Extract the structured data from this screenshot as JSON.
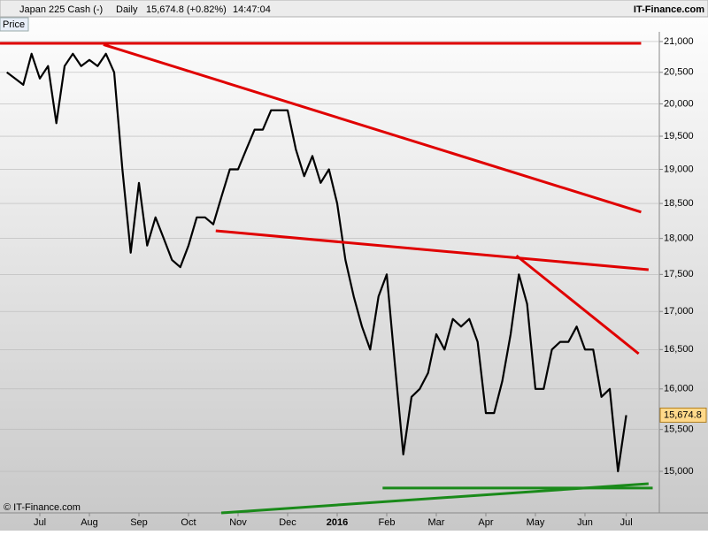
{
  "header": {
    "instrument": "Japan 225 Cash (-)",
    "interval": "Daily",
    "quote": "15,674.8 (+0.82%)",
    "time": "14:47:04",
    "brand": "IT-Finance.com"
  },
  "footer": {
    "copyright": "© IT-Finance.com"
  },
  "chart_data": {
    "type": "line",
    "log_scale": true,
    "grid": true,
    "categories": [
      null,
      null,
      null,
      null,
      "Jul",
      null,
      null,
      null,
      null,
      null,
      "Aug",
      null,
      null,
      null,
      null,
      null,
      "Sep",
      null,
      null,
      null,
      null,
      null,
      "Oct",
      null,
      null,
      null,
      null,
      null,
      "Nov",
      null,
      null,
      null,
      null,
      null,
      "Dec",
      null,
      null,
      null,
      null,
      null,
      "2016",
      null,
      null,
      null,
      null,
      null,
      "Feb",
      null,
      null,
      null,
      null,
      null,
      "Mar",
      null,
      null,
      null,
      null,
      null,
      "Apr",
      null,
      null,
      null,
      null,
      null,
      "May",
      null,
      null,
      null,
      null,
      null,
      "Jun",
      null,
      null,
      null,
      null,
      "Jul"
    ],
    "series": [
      {
        "name": "Price",
        "color": "#000000",
        "values": [
          20500,
          20400,
          20300,
          20800,
          20400,
          20600,
          19700,
          20600,
          20800,
          20600,
          20700,
          20600,
          20800,
          20500,
          19000,
          17800,
          18800,
          17900,
          18300,
          18000,
          17700,
          17600,
          17900,
          18300,
          18300,
          18200,
          18600,
          19000,
          19000,
          19300,
          19600,
          19600,
          19900,
          19900,
          19900,
          19300,
          18900,
          19200,
          18800,
          19000,
          18500,
          17700,
          17200,
          16800,
          16500,
          17200,
          17500,
          16300,
          15200,
          15900,
          16000,
          16200,
          16700,
          16500,
          16900,
          16800,
          16900,
          16600,
          15700,
          15700,
          16100,
          16700,
          17500,
          17100,
          16000,
          16000,
          16500,
          16600,
          16600,
          16800,
          16500,
          16500,
          15900,
          16000,
          15000,
          15674.8
        ]
      }
    ],
    "last_price": {
      "value": 15674.8,
      "label": "15,674.8"
    },
    "ylim": [
      14520,
      21160
    ],
    "yticks": [
      {
        "value": 15000,
        "label": "15,000"
      },
      {
        "value": 15500,
        "label": "15,500"
      },
      {
        "value": 16000,
        "label": "16,000"
      },
      {
        "value": 16500,
        "label": "16,500"
      },
      {
        "value": 17000,
        "label": "17,000"
      },
      {
        "value": 17500,
        "label": "17,500"
      },
      {
        "value": 18000,
        "label": "18,000"
      },
      {
        "value": 18500,
        "label": "18,500"
      },
      {
        "value": 19000,
        "label": "19,000"
      },
      {
        "value": 19500,
        "label": "19,500"
      },
      {
        "value": 20000,
        "label": "20,000"
      },
      {
        "value": 20500,
        "label": "20,500"
      },
      {
        "value": 21000,
        "label": "21,000"
      }
    ],
    "trendlines": [
      {
        "from": [
          -0.82,
          20970
        ],
        "to": [
          76.8,
          20970
        ],
        "color": "#e00000"
      },
      {
        "from": [
          11.7,
          20950
        ],
        "to": [
          76.8,
          18375
        ],
        "color": "#e00000"
      },
      {
        "from": [
          25.3,
          18108
        ],
        "to": [
          77.7,
          17565
        ],
        "color": "#e00000"
      },
      {
        "from": [
          61.7,
          17759
        ],
        "to": [
          76.5,
          16447
        ],
        "color": "#e00000"
      },
      {
        "from": [
          45.5,
          14805
        ],
        "to": [
          78.2,
          14805
        ],
        "color": "#1a8a1a"
      },
      {
        "from": [
          25.97,
          14520
        ],
        "to": [
          77.7,
          14856
        ],
        "color": "#1a8a1a"
      }
    ]
  }
}
